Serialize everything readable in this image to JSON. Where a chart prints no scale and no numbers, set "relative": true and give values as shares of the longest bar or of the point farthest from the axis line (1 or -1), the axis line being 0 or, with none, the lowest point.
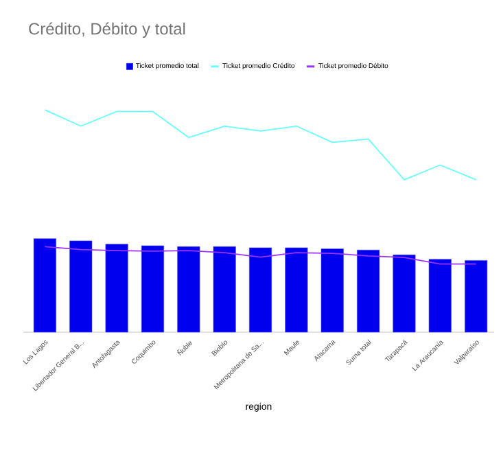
{
  "chart_data": {
    "type": "bar",
    "title": "Crédito, Débito y total",
    "xlabel": "region",
    "relative": true,
    "legend": "top",
    "categories": [
      "Los Lagos",
      "Libertador General B...",
      "Antofagasta",
      "Coquimbo",
      "Ñuble",
      "Biobío",
      "Metropolitana de Sa...",
      "Maule",
      "Atacama",
      "Suma total",
      "Tarapacá",
      "La Araucanía",
      "Valparaíso"
    ],
    "series": [
      {
        "name": "Ticket promedio total",
        "color": "#0000ee",
        "values": [
          0.421,
          0.411,
          0.396,
          0.389,
          0.385,
          0.385,
          0.38,
          0.38,
          0.375,
          0.37,
          0.348,
          0.328,
          0.323
        ]
      },
      {
        "name": "Ticket promedio Crédito",
        "type": "line",
        "color": "#66ffff",
        "values": [
          1,
          0.927,
          0.993,
          0.993,
          0.876,
          0.927,
          0.905,
          0.927,
          0.854,
          0.869,
          0.686,
          0.752,
          0.686
        ]
      },
      {
        "name": "Ticket promedio Débito",
        "type": "line",
        "color": "#9933ff",
        "values": [
          0.385,
          0.372,
          0.367,
          0.365,
          0.367,
          0.358,
          0.338,
          0.358,
          0.355,
          0.343,
          0.336,
          0.307,
          0.307
        ]
      }
    ]
  }
}
